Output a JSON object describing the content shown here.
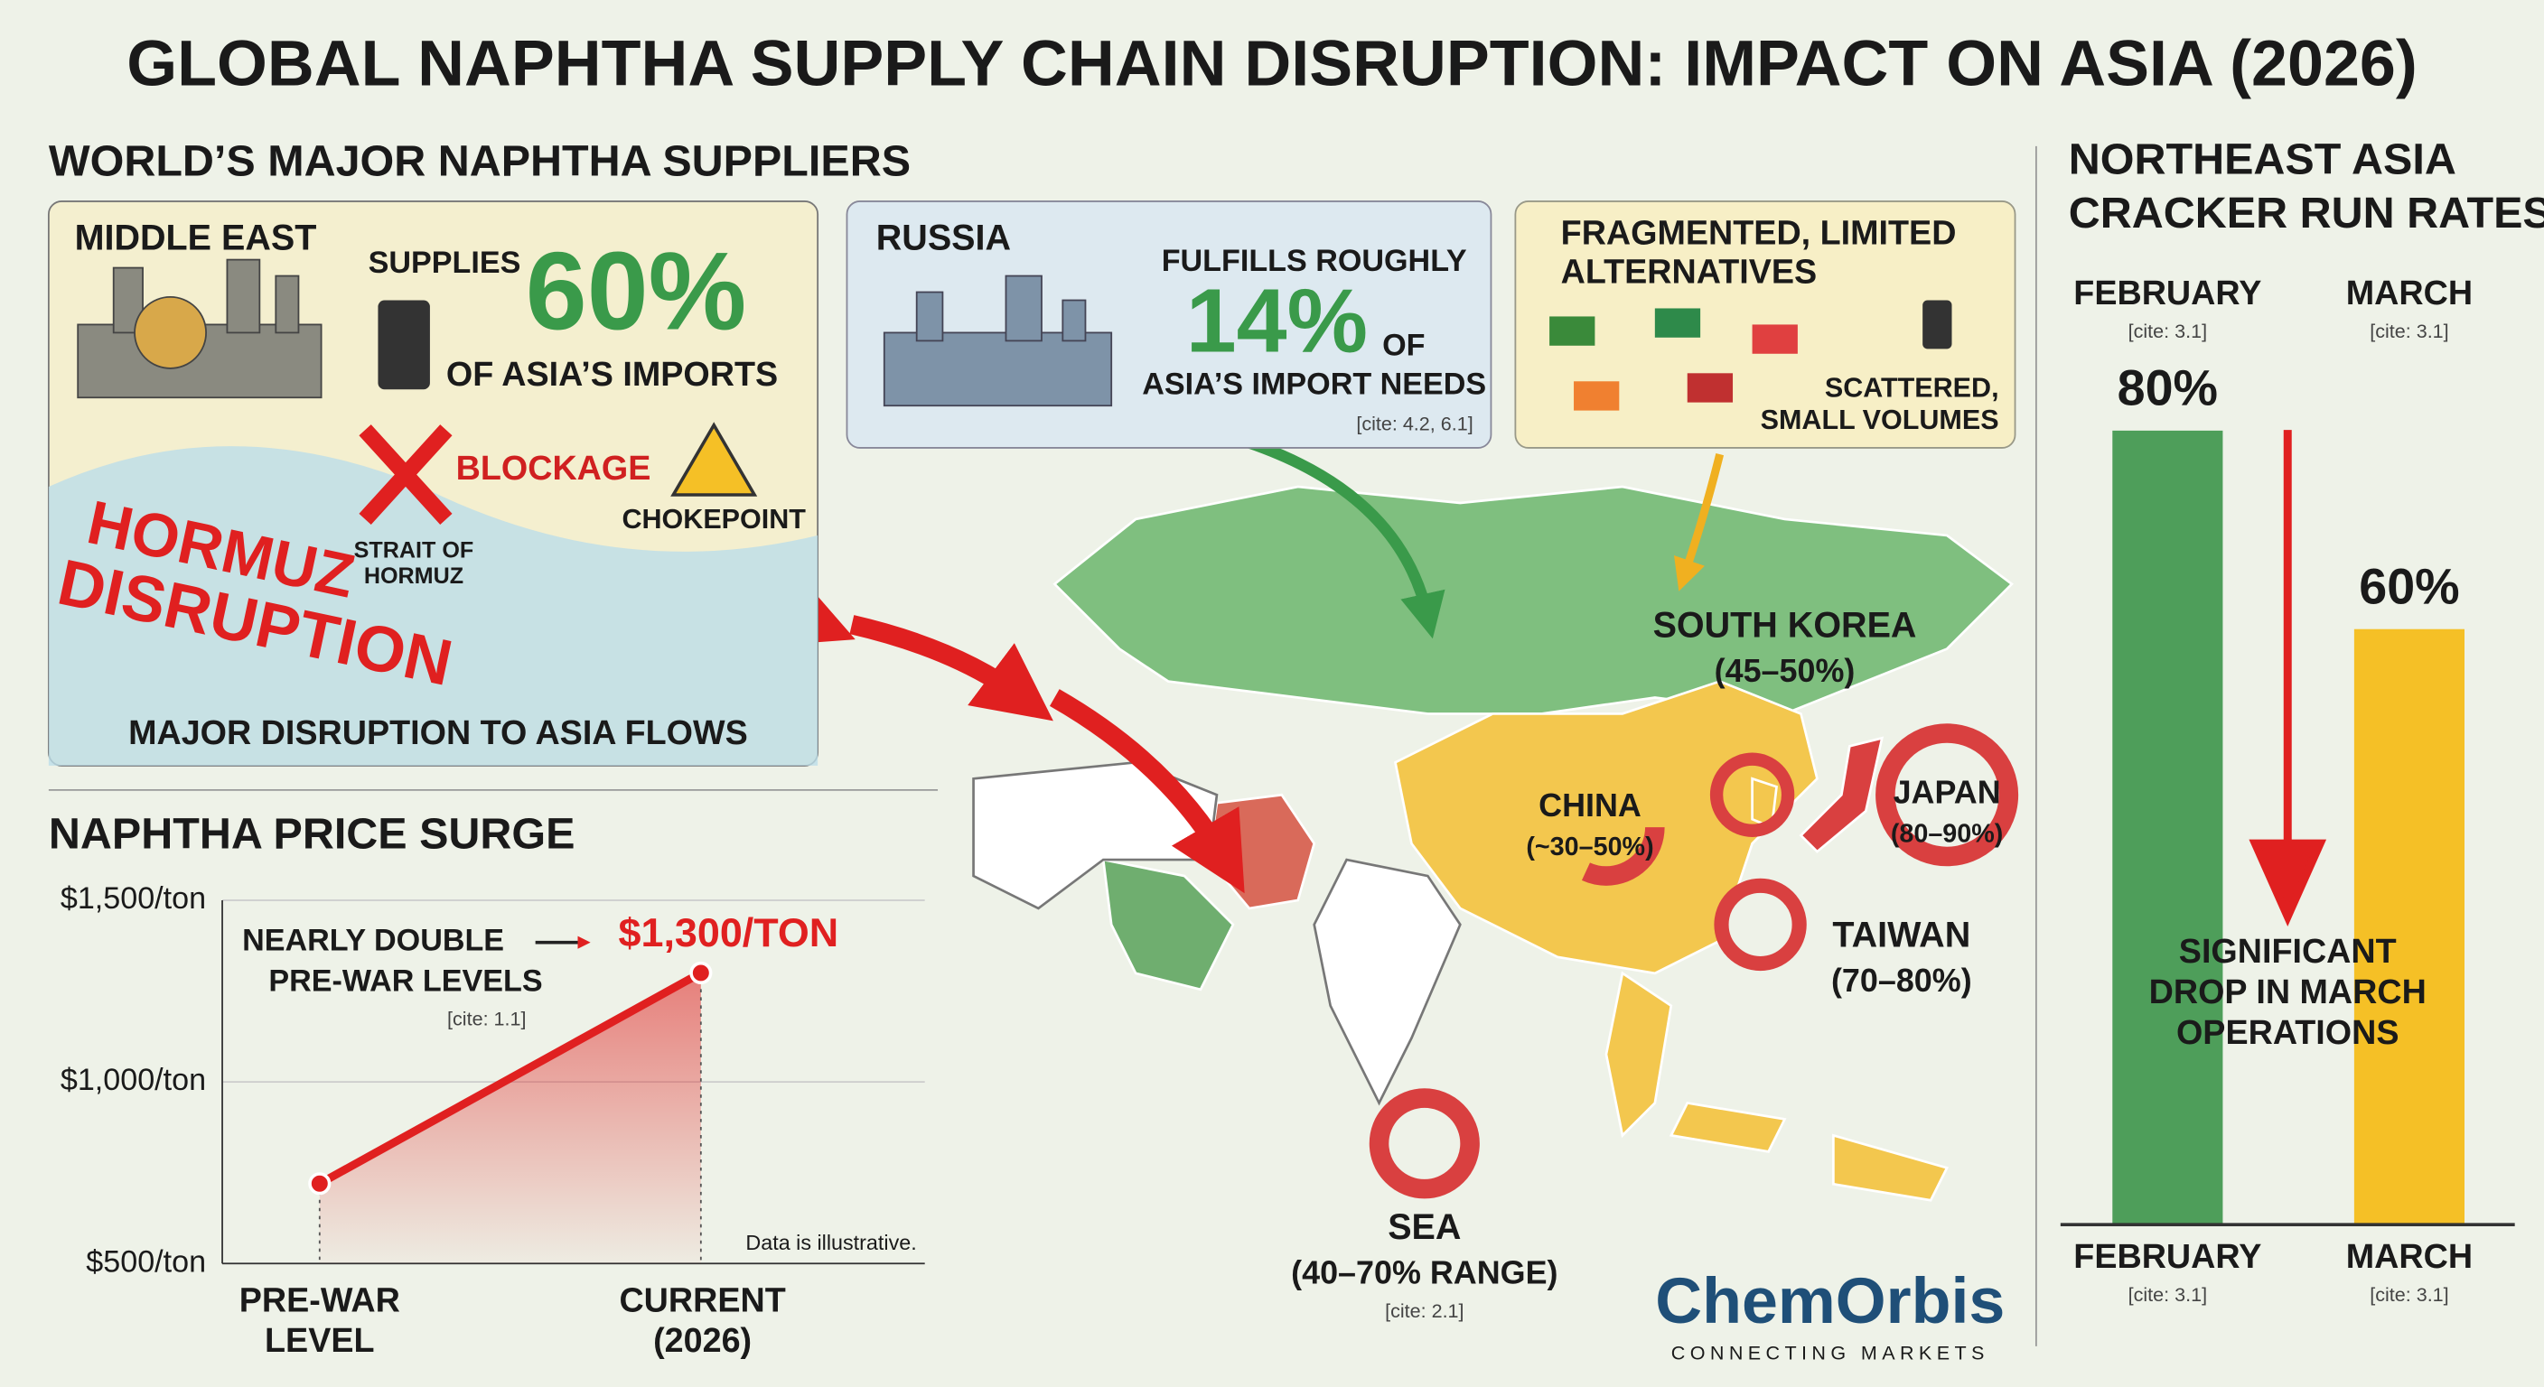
{
  "title": "GLOBAL NAPHTHA SUPPLY CHAIN DISRUPTION: IMPACT ON ASIA (2026)",
  "suppliers": {
    "heading": "WORLD’S MAJOR NAPHTHA SUPPLIERS",
    "middle_east": {
      "name": "MIDDLE EAST",
      "lead": "SUPPLIES",
      "share": "60%",
      "tail": "OF ASIA’S IMPORTS",
      "blockage": "BLOCKAGE",
      "strait": [
        "STRAIT OF",
        "HORMUZ"
      ],
      "chokepoint": "CHOKEPOINT",
      "disruption": [
        "HORMUZ",
        "DISRUPTION"
      ],
      "caption": "MAJOR DISRUPTION TO ASIA FLOWS"
    },
    "russia": {
      "name": "RUSSIA",
      "lead": "FULFILLS ROUGHLY",
      "share": "14%",
      "tail": [
        "OF",
        "ASIA’S IMPORT NEEDS"
      ],
      "cite": "[cite: 4.2, 6.1]"
    },
    "alternatives": {
      "name": [
        "FRAGMENTED, LIMITED",
        "ALTERNATIVES"
      ],
      "note": [
        "SCATTERED,",
        "SMALL VOLUMES"
      ]
    }
  },
  "map": {
    "countries": [
      {
        "name": "SOUTH KOREA",
        "range": "(45–50%)"
      },
      {
        "name": "CHINA",
        "range": "(~30–50%)"
      },
      {
        "name": "JAPAN",
        "range": "(80–90%)"
      },
      {
        "name": "TAIWAN",
        "range": "(70–80%)"
      },
      {
        "name": "SEA",
        "range": "(40–70% RANGE)",
        "cite": "[cite: 2.1]"
      }
    ]
  },
  "price_chart": {
    "type": "line",
    "title": "NAPHTHA PRICE SURGE",
    "categories": [
      [
        "PRE-WAR",
        "LEVEL"
      ],
      [
        "CURRENT",
        "(2026)"
      ]
    ],
    "values": [
      720,
      1300
    ],
    "value_labels": [
      null,
      "$1,300/TON"
    ],
    "color": "#e02020",
    "ylim": [
      500,
      1500
    ],
    "yticks": [
      {
        "value": 500,
        "label": "$500/ton"
      },
      {
        "value": 1000,
        "label": "$1,000/ton"
      },
      {
        "value": 1500,
        "label": "$1,500/ton"
      }
    ],
    "grid": true,
    "annotation": [
      "NEARLY DOUBLE",
      "PRE-WAR LEVELS"
    ],
    "cite": "[cite: 1.1]",
    "note": "Data is illustrative."
  },
  "run_rates": {
    "type": "bar",
    "title": [
      "NORTHEAST ASIA",
      "CRACKER RUN RATES"
    ],
    "categories": [
      "FEBRUARY",
      "MARCH"
    ],
    "values": [
      80,
      60
    ],
    "value_labels": [
      "80%",
      "60%"
    ],
    "colors": [
      "#4e9e5a",
      "#f5c026"
    ],
    "ylim": [
      0,
      100
    ],
    "cite": "[cite: 3.1]",
    "annotation": [
      "SIGNIFICANT",
      "DROP IN MARCH",
      "OPERATIONS"
    ]
  },
  "logo": {
    "name": "ChemOrbis",
    "tagline": "CONNECTING MARKETS"
  }
}
